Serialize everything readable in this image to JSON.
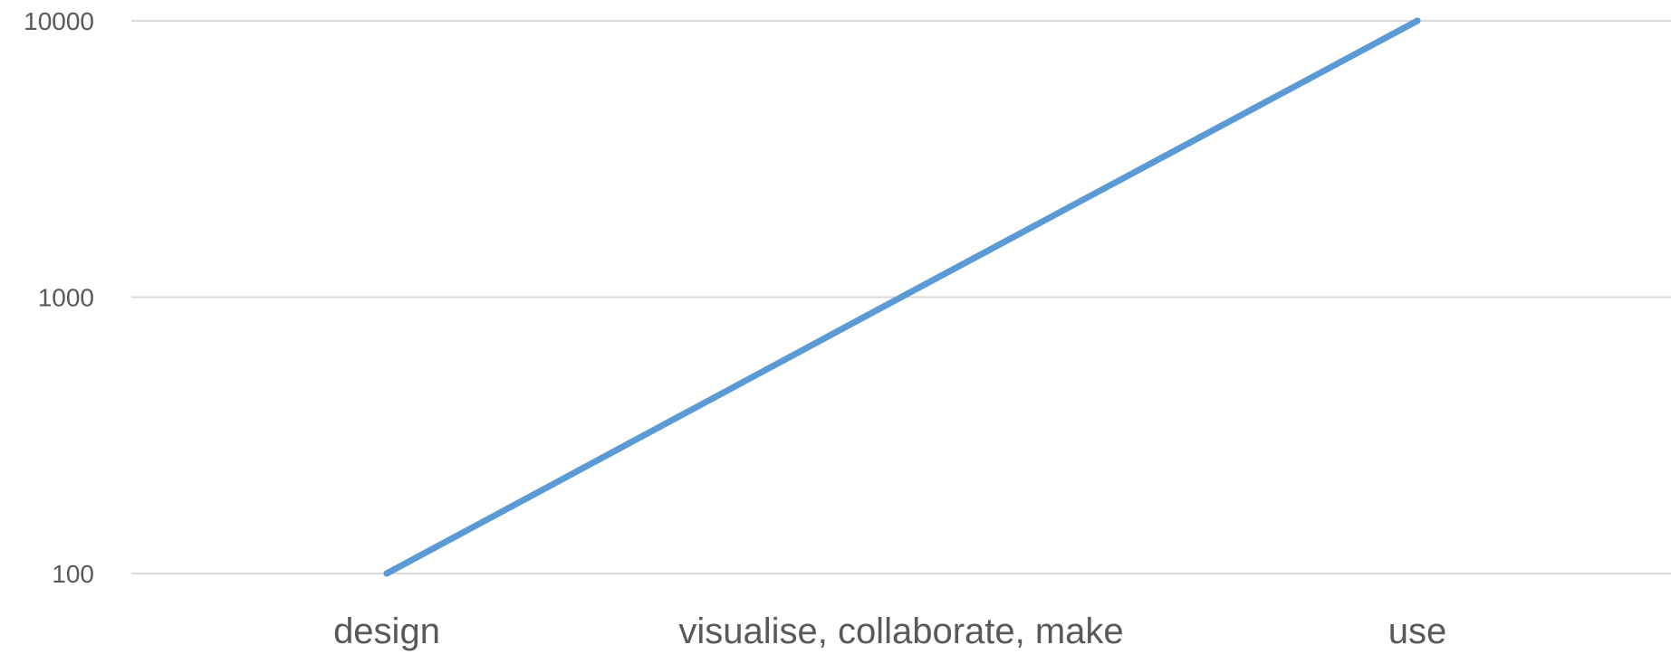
{
  "chart_data": {
    "type": "line",
    "title": "",
    "xlabel": "",
    "ylabel": "",
    "categories": [
      "design",
      "visualise, collaborate, make",
      "use"
    ],
    "series": [
      {
        "values": [
          100,
          1000,
          10000
        ],
        "color": "#5b9bd5"
      }
    ],
    "y_scale": "log",
    "ylim": [
      100,
      10000
    ],
    "yticks": [
      "100",
      "1000",
      "10000"
    ],
    "grid": "horizontal",
    "grid_color": "#d9d9d9",
    "text_color": "#595959",
    "legend": "none"
  }
}
